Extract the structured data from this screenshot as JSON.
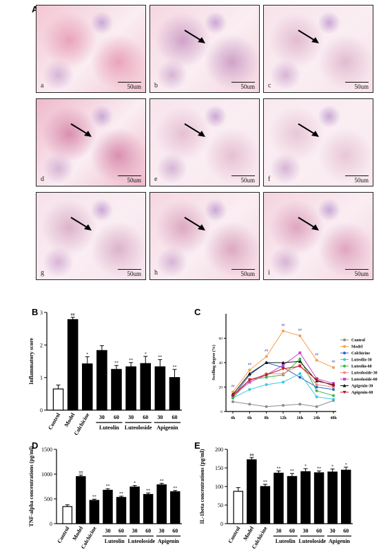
{
  "panels": {
    "A": "A",
    "B": "B",
    "C": "C",
    "D": "D",
    "E": "E"
  },
  "histology": {
    "scale_label": "50um",
    "tiles": [
      {
        "label": "a",
        "arrow": false
      },
      {
        "label": "b",
        "arrow": true
      },
      {
        "label": "c",
        "arrow": true
      },
      {
        "label": "d",
        "arrow": true
      },
      {
        "label": "e",
        "arrow": true
      },
      {
        "label": "f",
        "arrow": true
      },
      {
        "label": "g",
        "arrow": true
      },
      {
        "label": "h",
        "arrow": true
      },
      {
        "label": "i",
        "arrow": true
      }
    ]
  },
  "chart_data": [
    {
      "id": "B",
      "type": "bar",
      "ylabel": "Inflammatory score",
      "ylim": [
        0,
        3
      ],
      "yticks": [
        0,
        1,
        2,
        3
      ],
      "categories": [
        "Control",
        "Model",
        "Colchicine",
        "30",
        "60",
        "30",
        "60",
        "30",
        "60"
      ],
      "groups": [
        {
          "label": "Luteolin",
          "from": 3,
          "to": 4
        },
        {
          "label": "Luteoloside",
          "from": 5,
          "to": 6
        },
        {
          "label": "Apigenin",
          "from": 7,
          "to": 8
        }
      ],
      "values": [
        0.65,
        2.78,
        1.42,
        1.83,
        1.25,
        1.33,
        1.43,
        1.33,
        1.0
      ],
      "errors": [
        0.12,
        0.07,
        0.22,
        0.15,
        0.12,
        0.13,
        0.22,
        0.22,
        0.25
      ],
      "marks": [
        "",
        "##",
        "*",
        "",
        "**",
        "**",
        "*",
        "**",
        "**"
      ]
    },
    {
      "id": "C",
      "type": "line",
      "ylabel": "Swelling degree (%)",
      "ylim": [
        0,
        80
      ],
      "yticks": [
        0,
        20,
        40,
        60
      ],
      "x": [
        "4h",
        "6h",
        "8h",
        "12h",
        "16h",
        "24h",
        "48h"
      ],
      "series": [
        {
          "name": "Control",
          "color": "#8c8c8c",
          "marker": "circle",
          "values": [
            8,
            6,
            4,
            5,
            6,
            4,
            9
          ]
        },
        {
          "name": "Model",
          "color": "#f5a04a",
          "marker": "circle",
          "values": [
            16,
            34,
            45,
            66,
            62,
            42,
            36
          ]
        },
        {
          "name": "Colchicine",
          "color": "#2f63c9",
          "marker": "circle",
          "values": [
            12,
            30,
            40,
            36,
            28,
            20,
            18
          ]
        },
        {
          "name": "Luteolin-30",
          "color": "#38c7e6",
          "marker": "circle",
          "values": [
            11,
            18,
            22,
            24,
            31,
            12,
            10
          ]
        },
        {
          "name": "Luteolin-60",
          "color": "#38b84a",
          "marker": "circle",
          "values": [
            11,
            26,
            28,
            30,
            43,
            17,
            13
          ]
        },
        {
          "name": "Luteoloside-30",
          "color": "#f08a8a",
          "marker": "circle",
          "values": [
            14,
            25,
            31,
            31,
            38,
            22,
            20
          ]
        },
        {
          "name": "Luteoloside-60",
          "color": "#c548c9",
          "marker": "square",
          "values": [
            13,
            24,
            30,
            38,
            48,
            27,
            23
          ]
        },
        {
          "name": "Apigenin-30",
          "color": "#111111",
          "marker": "triangle",
          "values": [
            14,
            31,
            40,
            40,
            41,
            25,
            22
          ]
        },
        {
          "name": "Apigenin-60",
          "color": "#c01919",
          "marker": "triangle-down",
          "values": [
            13,
            26,
            30,
            35,
            37,
            26,
            21
          ]
        }
      ],
      "annotations": [
        {
          "x_index": 0,
          "y": 20,
          "text": "##"
        },
        {
          "x_index": 1,
          "y": 38,
          "text": "##"
        },
        {
          "x_index": 2,
          "y": 49,
          "text": "##"
        },
        {
          "x_index": 3,
          "y": 70,
          "text": "##"
        },
        {
          "x_index": 4,
          "y": 66,
          "text": "##"
        },
        {
          "x_index": 5,
          "y": 46,
          "text": "##"
        },
        {
          "x_index": 6,
          "y": 40,
          "text": "##"
        }
      ]
    },
    {
      "id": "D",
      "type": "bar",
      "ylabel": "TNF-alpha concentrations (pg/ml)",
      "ylim": [
        0,
        1500
      ],
      "yticks": [
        0,
        500,
        1000,
        1500
      ],
      "categories": [
        "Control",
        "Model",
        "Colchicine",
        "30",
        "60",
        "30",
        "60",
        "30",
        "60"
      ],
      "groups": [
        {
          "label": "Luteolin",
          "from": 3,
          "to": 4
        },
        {
          "label": "Luteoloside",
          "from": 5,
          "to": 6
        },
        {
          "label": "Apigenin",
          "from": 7,
          "to": 8
        }
      ],
      "values": [
        345,
        950,
        470,
        675,
        530,
        740,
        590,
        785,
        645
      ],
      "errors": [
        35,
        30,
        25,
        30,
        25,
        30,
        30,
        30,
        25
      ],
      "marks": [
        "",
        "##",
        "**",
        "**",
        "**",
        "*",
        "**",
        "**",
        "**"
      ]
    },
    {
      "id": "E",
      "type": "bar",
      "ylabel": "IL-1beta concentrations (pg/ml)",
      "ylim": [
        0,
        200
      ],
      "yticks": [
        0,
        50,
        100,
        150,
        200
      ],
      "categories": [
        "Control",
        "Model",
        "Colchicine",
        "30",
        "60",
        "30",
        "60",
        "30",
        "60"
      ],
      "groups": [
        {
          "label": "Luteolin",
          "from": 3,
          "to": 4
        },
        {
          "label": "Luteoloside",
          "from": 5,
          "to": 6
        },
        {
          "label": "Apigenin",
          "from": 7,
          "to": 8
        }
      ],
      "values": [
        87,
        172,
        100,
        136,
        127,
        140,
        137,
        139,
        144
      ],
      "errors": [
        10,
        6,
        6,
        6,
        8,
        8,
        5,
        8,
        8
      ],
      "marks": [
        "",
        "##",
        "**",
        "**",
        "**",
        "*",
        "**",
        "*",
        "*"
      ]
    }
  ]
}
